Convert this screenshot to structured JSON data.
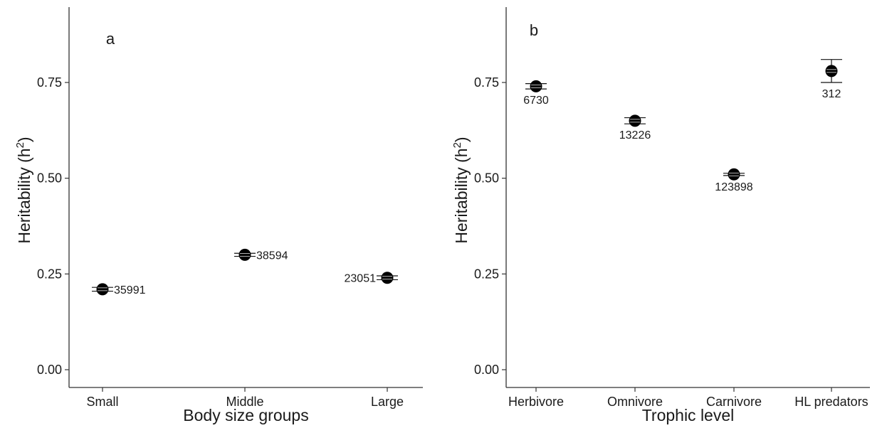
{
  "chart_data": [
    {
      "type": "scatter",
      "panel_label": "a",
      "xlabel": "Body size groups",
      "ylabel": "Heritability (h",
      "ylabel_superscript": "2",
      "ylabel_suffix": ")",
      "ylim": [
        0,
        0.9
      ],
      "yticks": [
        "0.00",
        "0.25",
        "0.50",
        "0.75"
      ],
      "categories": [
        "Small",
        "Middle",
        "Large"
      ],
      "values": [
        0.21,
        0.3,
        0.24
      ],
      "error_low": [
        0.205,
        0.296,
        0.235
      ],
      "error_high": [
        0.215,
        0.304,
        0.245
      ],
      "counts": [
        "35991",
        "38594",
        "23051"
      ],
      "count_positions": [
        "right",
        "right",
        "left"
      ],
      "grid": false
    },
    {
      "type": "scatter",
      "panel_label": "b",
      "xlabel": "Trophic level",
      "ylabel": "Heritability (h",
      "ylabel_superscript": "2",
      "ylabel_suffix": ")",
      "ylim": [
        0,
        0.9
      ],
      "yticks": [
        "0.00",
        "0.25",
        "0.50",
        "0.75"
      ],
      "categories": [
        "Herbivore",
        "Omnivore",
        "Carnivore",
        "HL predators"
      ],
      "values": [
        0.74,
        0.65,
        0.51,
        0.78
      ],
      "error_low": [
        0.733,
        0.642,
        0.507,
        0.75
      ],
      "error_high": [
        0.747,
        0.658,
        0.513,
        0.81
      ],
      "counts": [
        "6730",
        "13226",
        "123898",
        "312"
      ],
      "count_positions": [
        "below",
        "below",
        "below",
        "below"
      ],
      "grid": false
    }
  ]
}
